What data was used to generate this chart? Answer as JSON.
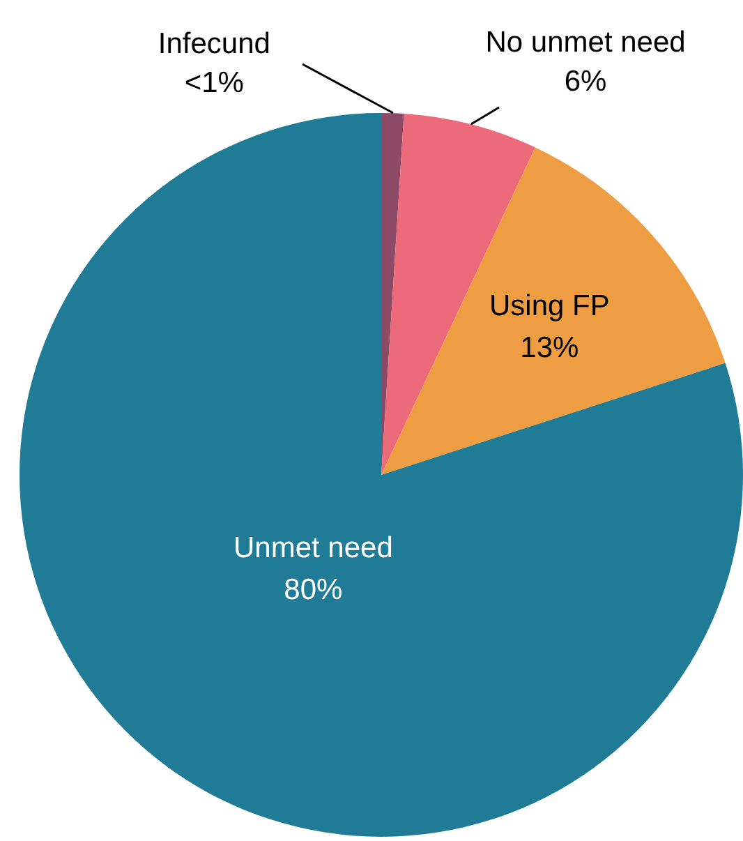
{
  "chart_data": {
    "type": "pie",
    "categories": [
      "Infecund",
      "No unmet need",
      "Using FP",
      "Unmet need"
    ],
    "values": [
      1,
      6,
      13,
      80
    ],
    "value_labels": [
      "<1%",
      "6%",
      "13%",
      "80%"
    ],
    "colors": [
      "#8c4a66",
      "#ec6a7a",
      "#ee9d42",
      "#1f7b96"
    ],
    "legend": false
  }
}
